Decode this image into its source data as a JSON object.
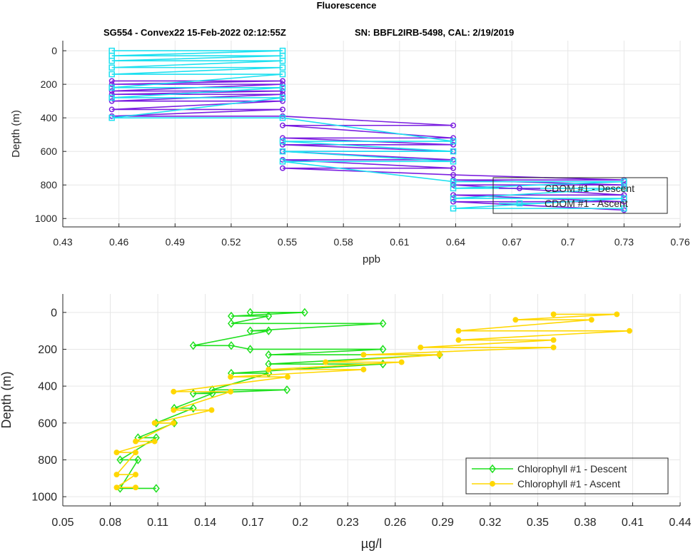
{
  "page_title": "Fluorescence",
  "subtitle_left": "SG554 - Convex22 15-Feb-2022 02:12:55Z",
  "subtitle_right": "SN: BBFL2IRB-5498, CAL: 2/19/2019",
  "chart_data": [
    {
      "type": "line",
      "xlabel": "ppb",
      "ylabel": "Depth (m)",
      "xlim": [
        0.43,
        0.76
      ],
      "ylim": [
        1050,
        -60
      ],
      "y_reversed": true,
      "grid": true,
      "legend_position": "bottom-right",
      "xticks": [
        "0.43",
        "0.46",
        "0.49",
        "0.52",
        "0.55",
        "0.58",
        "0.61",
        "0.64",
        "0.67",
        "0.7",
        "0.73",
        "0.76"
      ],
      "yticks": [
        "0",
        "200",
        "400",
        "600",
        "800",
        "1000"
      ],
      "series": [
        {
          "name": "CDOM #1 - Descent",
          "color": "#7b1fe0",
          "marker": "circle",
          "x": [
            0.4562,
            0.5475,
            0.4562,
            0.5475,
            0.4562,
            0.5475,
            0.4562,
            0.5475,
            0.4562,
            0.5475,
            0.4562,
            0.5475,
            0.4562,
            0.5475,
            0.6387,
            0.5475,
            0.6387,
            0.5475,
            0.6387,
            0.5475,
            0.6387,
            0.5475,
            0.6387,
            0.5475,
            0.6387,
            0.5475,
            0.6387,
            0.73,
            0.6387,
            0.73,
            0.6387,
            0.73,
            0.6387,
            0.73,
            0.6387,
            0.73
          ],
          "y": [
            180,
            180,
            200,
            200,
            240,
            240,
            260,
            260,
            300,
            300,
            350,
            350,
            390,
            390,
            445,
            445,
            520,
            520,
            560,
            560,
            600,
            600,
            650,
            650,
            700,
            700,
            740,
            770,
            770,
            800,
            800,
            860,
            860,
            900,
            900,
            950
          ]
        },
        {
          "name": "CDOM #1 - Ascent",
          "color": "#1ee0f0",
          "marker": "square",
          "x": [
            0.4562,
            0.5475,
            0.4562,
            0.5475,
            0.4562,
            0.5475,
            0.4562,
            0.5475,
            0.4562,
            0.5475,
            0.4562,
            0.5475,
            0.4562,
            0.5475,
            0.4562,
            0.5475,
            0.6387,
            0.5475,
            0.6387,
            0.5475,
            0.6387,
            0.5475,
            0.6387,
            0.73,
            0.6387,
            0.73,
            0.6387,
            0.73,
            0.6387,
            0.73
          ],
          "y": [
            0,
            0,
            30,
            30,
            60,
            60,
            100,
            100,
            140,
            140,
            220,
            220,
            280,
            280,
            400,
            400,
            540,
            540,
            600,
            600,
            660,
            660,
            780,
            780,
            820,
            820,
            880,
            880,
            940,
            940
          ]
        }
      ]
    },
    {
      "type": "line",
      "xlabel": "µg/l",
      "ylabel": "Depth (m)",
      "xlim": [
        0.05,
        0.44
      ],
      "ylim": [
        1050,
        -100
      ],
      "y_reversed": true,
      "grid": true,
      "legend_position": "bottom-right",
      "xticks": [
        "0.05",
        "0.08",
        "0.11",
        "0.14",
        "0.17",
        "0.2",
        "0.23",
        "0.26",
        "0.29",
        "0.32",
        "0.35",
        "0.38",
        "0.41",
        "0.44"
      ],
      "yticks": [
        "0",
        "200",
        "400",
        "600",
        "800",
        "1000"
      ],
      "series": [
        {
          "name": "Chlorophyll #1 - Descent",
          "color": "#1fe01f",
          "marker": "diamond",
          "x": [
            0.1684,
            0.2028,
            0.1564,
            0.18,
            0.1564,
            0.2522,
            0.1684,
            0.18,
            0.1324,
            0.1564,
            0.1684,
            0.2522,
            0.18,
            0.288,
            0.18,
            0.2522,
            0.1564,
            0.18,
            0.1444,
            0.1916,
            0.1324,
            0.1444,
            0.1204,
            0.1324,
            0.109,
            0.1204,
            0.0975,
            0.109,
            0.0862,
            0.0975,
            0.0862,
            0.109
          ],
          "y": [
            0,
            0,
            20,
            20,
            60,
            60,
            100,
            100,
            180,
            180,
            200,
            200,
            230,
            230,
            280,
            280,
            330,
            330,
            420,
            420,
            440,
            440,
            520,
            520,
            600,
            600,
            680,
            680,
            800,
            800,
            955,
            955
          ]
        },
        {
          "name": "Chlorophyll #1 - Ascent",
          "color": "#ffd700",
          "marker": "circle",
          "x": [
            0.36,
            0.4,
            0.336,
            0.384,
            0.3,
            0.408,
            0.3,
            0.36,
            0.276,
            0.36,
            0.24,
            0.288,
            0.216,
            0.264,
            0.18,
            0.24,
            0.156,
            0.192,
            0.12,
            0.156,
            0.12,
            0.144,
            0.108,
            0.12,
            0.096,
            0.108,
            0.084,
            0.096,
            0.084,
            0.096,
            0.084,
            0.096
          ],
          "y": [
            10,
            10,
            40,
            40,
            100,
            100,
            150,
            150,
            190,
            190,
            230,
            230,
            270,
            270,
            310,
            310,
            350,
            350,
            430,
            430,
            530,
            530,
            600,
            600,
            700,
            700,
            760,
            760,
            880,
            880,
            950,
            950
          ]
        }
      ]
    }
  ]
}
